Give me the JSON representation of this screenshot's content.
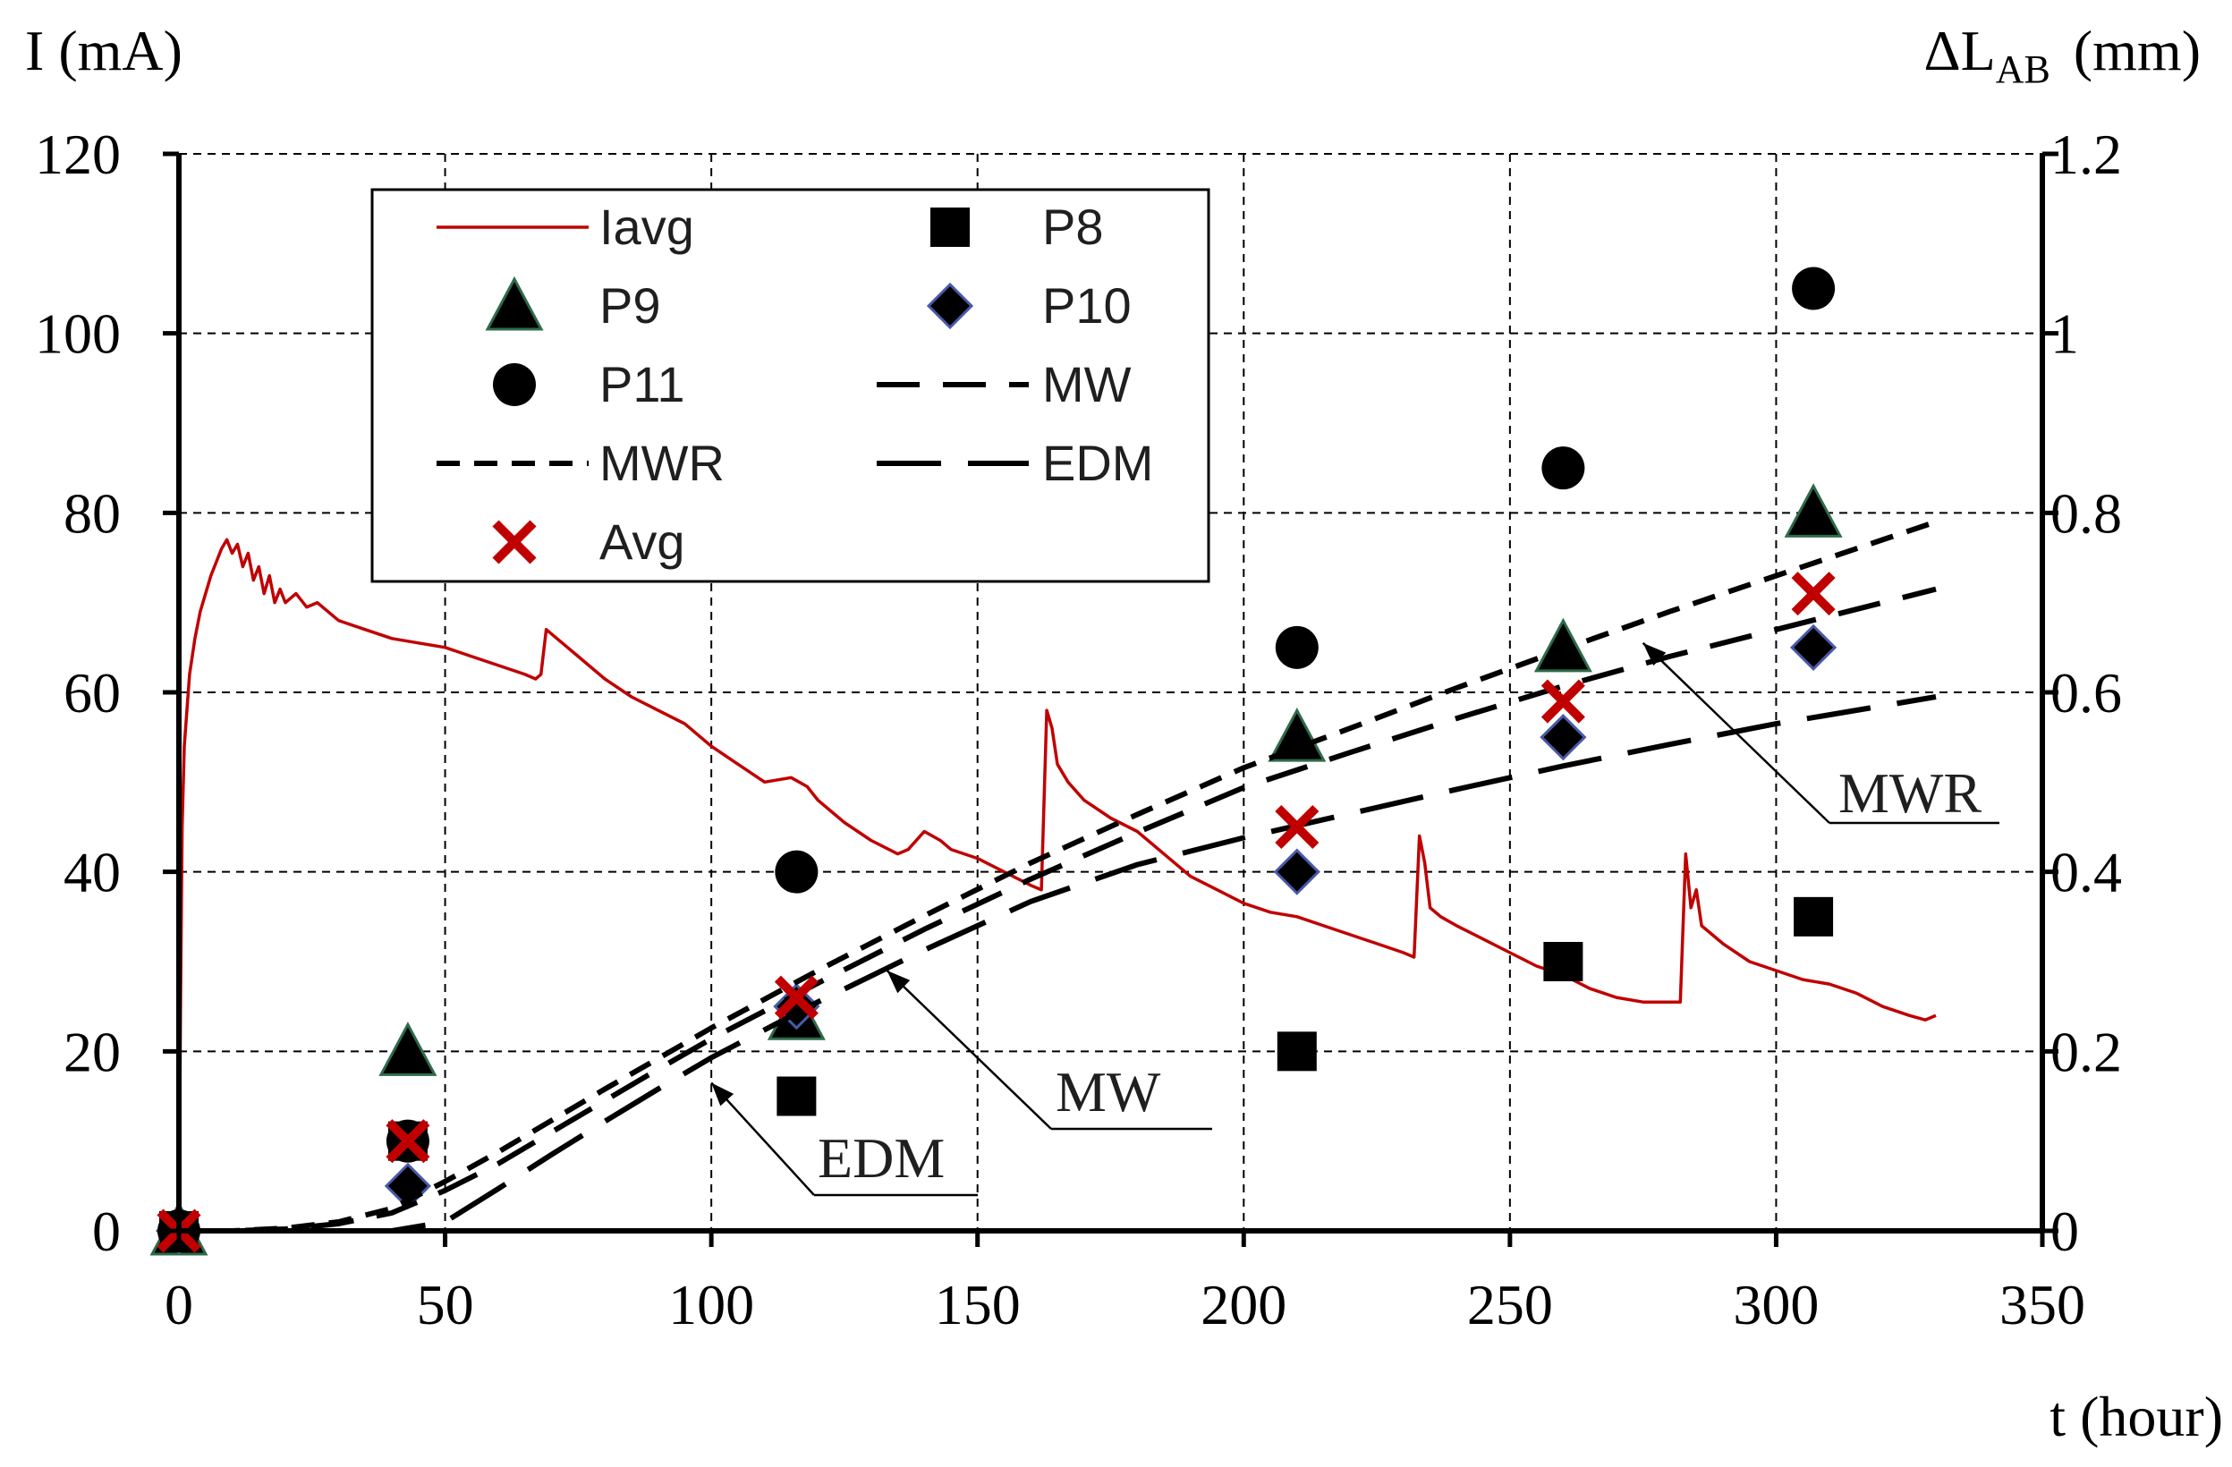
{
  "chart_data": {
    "type": "line",
    "x_axis": {
      "label": "t (hour)",
      "range": [
        0,
        350
      ],
      "ticks": [
        0,
        50,
        100,
        150,
        200,
        250,
        300,
        350
      ]
    },
    "y_left": {
      "label": "I (mA)",
      "range": [
        0,
        120
      ],
      "ticks": [
        0,
        20,
        40,
        60,
        80,
        100,
        120
      ]
    },
    "y_right": {
      "label_main": "ΔL",
      "label_sub": "AB",
      "label_unit": "(mm)",
      "range": [
        0,
        1.2
      ],
      "ticks": [
        "0",
        "0.2",
        "0.4",
        "0.6",
        "0.8",
        "1",
        "1.2"
      ]
    },
    "grid": true,
    "legend_position": "top-left",
    "series": [
      {
        "name": "Iavg",
        "kind": "line",
        "axis": "left",
        "color": "#c00000",
        "points": [
          [
            0,
            0
          ],
          [
            0.3,
            25
          ],
          [
            0.6,
            45
          ],
          [
            1,
            54
          ],
          [
            2,
            62
          ],
          [
            3,
            66
          ],
          [
            4,
            69
          ],
          [
            5,
            71
          ],
          [
            6,
            73
          ],
          [
            7,
            74.5
          ],
          [
            8,
            76
          ],
          [
            9,
            77
          ],
          [
            10,
            75.5
          ],
          [
            11,
            76.5
          ],
          [
            12,
            74
          ],
          [
            13,
            75.5
          ],
          [
            14,
            72.5
          ],
          [
            15,
            74
          ],
          [
            16,
            71
          ],
          [
            17,
            73
          ],
          [
            18,
            70
          ],
          [
            19,
            71.5
          ],
          [
            20,
            70
          ],
          [
            22,
            71
          ],
          [
            24,
            69.5
          ],
          [
            26,
            70
          ],
          [
            28,
            69
          ],
          [
            30,
            68
          ],
          [
            35,
            67
          ],
          [
            40,
            66
          ],
          [
            45,
            65.5
          ],
          [
            50,
            65
          ],
          [
            55,
            64
          ],
          [
            60,
            63
          ],
          [
            65,
            62
          ],
          [
            67,
            61.5
          ],
          [
            68,
            62
          ],
          [
            69,
            67
          ],
          [
            70,
            66.5
          ],
          [
            72,
            65.5
          ],
          [
            75,
            64
          ],
          [
            80,
            61.5
          ],
          [
            85,
            59.5
          ],
          [
            90,
            58
          ],
          [
            95,
            56.5
          ],
          [
            100,
            54
          ],
          [
            105,
            52
          ],
          [
            110,
            50
          ],
          [
            115,
            50.5
          ],
          [
            118,
            49.5
          ],
          [
            120,
            48
          ],
          [
            125,
            45.5
          ],
          [
            130,
            43.5
          ],
          [
            135,
            42
          ],
          [
            137,
            42.5
          ],
          [
            140,
            44.5
          ],
          [
            143,
            43.5
          ],
          [
            145,
            42.5
          ],
          [
            150,
            41.5
          ],
          [
            155,
            40
          ],
          [
            160,
            38.5
          ],
          [
            162,
            38
          ],
          [
            163,
            58
          ],
          [
            164,
            56
          ],
          [
            165,
            52
          ],
          [
            167,
            50
          ],
          [
            170,
            48
          ],
          [
            175,
            46
          ],
          [
            180,
            44.5
          ],
          [
            185,
            42
          ],
          [
            190,
            39.5
          ],
          [
            195,
            38
          ],
          [
            200,
            36.5
          ],
          [
            205,
            35.5
          ],
          [
            210,
            35
          ],
          [
            215,
            34
          ],
          [
            220,
            33
          ],
          [
            225,
            32
          ],
          [
            230,
            31
          ],
          [
            232,
            30.5
          ],
          [
            233,
            44
          ],
          [
            234,
            41
          ],
          [
            235,
            36
          ],
          [
            237,
            35
          ],
          [
            240,
            34
          ],
          [
            245,
            32.5
          ],
          [
            250,
            31
          ],
          [
            255,
            29.5
          ],
          [
            260,
            28.5
          ],
          [
            265,
            27
          ],
          [
            270,
            26
          ],
          [
            275,
            25.5
          ],
          [
            280,
            25.5
          ],
          [
            282,
            25.5
          ],
          [
            283,
            42
          ],
          [
            284,
            36
          ],
          [
            285,
            38
          ],
          [
            286,
            34
          ],
          [
            290,
            32
          ],
          [
            295,
            30
          ],
          [
            300,
            29
          ],
          [
            305,
            28
          ],
          [
            310,
            27.5
          ],
          [
            315,
            26.5
          ],
          [
            320,
            25
          ],
          [
            325,
            24
          ],
          [
            328,
            23.5
          ],
          [
            330,
            24
          ]
        ]
      },
      {
        "name": "P8",
        "kind": "marker",
        "marker": "square",
        "axis": "right",
        "color": "#000000",
        "points": [
          [
            0,
            0
          ],
          [
            43,
            0.1
          ],
          [
            116,
            0.15
          ],
          [
            210,
            0.2
          ],
          [
            260,
            0.3
          ],
          [
            307,
            0.35
          ]
        ]
      },
      {
        "name": "P9",
        "kind": "marker",
        "marker": "triangle",
        "axis": "right",
        "color": "#000000",
        "edge_color": "#2e6b4a",
        "points": [
          [
            0,
            0
          ],
          [
            43,
            0.2
          ],
          [
            116,
            0.24
          ],
          [
            210,
            0.55
          ],
          [
            260,
            0.65
          ],
          [
            307,
            0.8
          ]
        ]
      },
      {
        "name": "P10",
        "kind": "marker",
        "marker": "diamond",
        "axis": "right",
        "color": "#000000",
        "edge_color": "#4a5aa8",
        "points": [
          [
            0,
            0
          ],
          [
            43,
            0.05
          ],
          [
            116,
            0.25
          ],
          [
            210,
            0.4
          ],
          [
            260,
            0.55
          ],
          [
            307,
            0.65
          ]
        ]
      },
      {
        "name": "P11",
        "kind": "marker",
        "marker": "circle",
        "axis": "right",
        "color": "#000000",
        "points": [
          [
            0,
            0
          ],
          [
            43,
            0.1
          ],
          [
            116,
            0.4
          ],
          [
            210,
            0.65
          ],
          [
            260,
            0.85
          ],
          [
            307,
            1.05
          ]
        ]
      },
      {
        "name": "MW",
        "kind": "dashed",
        "dash": "medium",
        "axis": "right",
        "color": "#000000",
        "points": [
          [
            0,
            0
          ],
          [
            10,
            0
          ],
          [
            20,
            0.002
          ],
          [
            30,
            0.008
          ],
          [
            40,
            0.02
          ],
          [
            50,
            0.045
          ],
          [
            60,
            0.075
          ],
          [
            70,
            0.11
          ],
          [
            80,
            0.145
          ],
          [
            90,
            0.18
          ],
          [
            100,
            0.214
          ],
          [
            120,
            0.276
          ],
          [
            140,
            0.336
          ],
          [
            160,
            0.392
          ],
          [
            180,
            0.444
          ],
          [
            200,
            0.494
          ],
          [
            220,
            0.533
          ],
          [
            240,
            0.571
          ],
          [
            260,
            0.607
          ],
          [
            280,
            0.64
          ],
          [
            300,
            0.67
          ],
          [
            320,
            0.7
          ],
          [
            330,
            0.715
          ]
        ]
      },
      {
        "name": "MWR",
        "kind": "dashed",
        "dash": "short",
        "axis": "right",
        "color": "#000000",
        "points": [
          [
            0,
            0
          ],
          [
            10,
            0
          ],
          [
            20,
            0.003
          ],
          [
            30,
            0.01
          ],
          [
            40,
            0.025
          ],
          [
            50,
            0.055
          ],
          [
            60,
            0.088
          ],
          [
            70,
            0.123
          ],
          [
            80,
            0.158
          ],
          [
            90,
            0.192
          ],
          [
            100,
            0.226
          ],
          [
            120,
            0.29
          ],
          [
            140,
            0.351
          ],
          [
            160,
            0.41
          ],
          [
            180,
            0.464
          ],
          [
            200,
            0.516
          ],
          [
            220,
            0.56
          ],
          [
            240,
            0.605
          ],
          [
            260,
            0.648
          ],
          [
            280,
            0.69
          ],
          [
            300,
            0.73
          ],
          [
            320,
            0.77
          ],
          [
            330,
            0.79
          ]
        ]
      },
      {
        "name": "EDM",
        "kind": "dashed",
        "dash": "long",
        "axis": "right",
        "color": "#000000",
        "points": [
          [
            0,
            0
          ],
          [
            30,
            0
          ],
          [
            40,
            0
          ],
          [
            50,
            0.01
          ],
          [
            60,
            0.047
          ],
          [
            70,
            0.085
          ],
          [
            80,
            0.122
          ],
          [
            90,
            0.158
          ],
          [
            100,
            0.193
          ],
          [
            120,
            0.255
          ],
          [
            140,
            0.313
          ],
          [
            160,
            0.367
          ],
          [
            180,
            0.408
          ],
          [
            200,
            0.438
          ],
          [
            220,
            0.465
          ],
          [
            240,
            0.492
          ],
          [
            260,
            0.518
          ],
          [
            280,
            0.542
          ],
          [
            300,
            0.565
          ],
          [
            320,
            0.585
          ],
          [
            330,
            0.595
          ]
        ]
      },
      {
        "name": "Avg",
        "kind": "marker",
        "marker": "x",
        "axis": "right",
        "color": "#c00000",
        "points": [
          [
            0,
            0
          ],
          [
            43,
            0.1
          ],
          [
            116,
            0.26
          ],
          [
            210,
            0.45
          ],
          [
            260,
            0.59
          ],
          [
            307,
            0.71
          ]
        ]
      }
    ],
    "legend": [
      {
        "label": "Iavg",
        "series": "Iavg"
      },
      {
        "label": "P8",
        "series": "P8"
      },
      {
        "label": "P9",
        "series": "P9"
      },
      {
        "label": "P10",
        "series": "P10"
      },
      {
        "label": "P11",
        "series": "P11"
      },
      {
        "label": "MW",
        "series": "MW"
      },
      {
        "label": "MWR",
        "series": "MWR"
      },
      {
        "label": "EDM",
        "series": "EDM"
      },
      {
        "label": "Avg",
        "series": "Avg"
      }
    ],
    "annotations": [
      {
        "text": "MWR",
        "target_series": "MWR",
        "arrow_to": [
          275,
          0.655
        ]
      },
      {
        "text": "MW",
        "target_series": "MW",
        "arrow_to": [
          133,
          0.29
        ]
      },
      {
        "text": "EDM",
        "target_series": "EDM",
        "arrow_to": [
          100,
          0.165
        ]
      }
    ]
  }
}
